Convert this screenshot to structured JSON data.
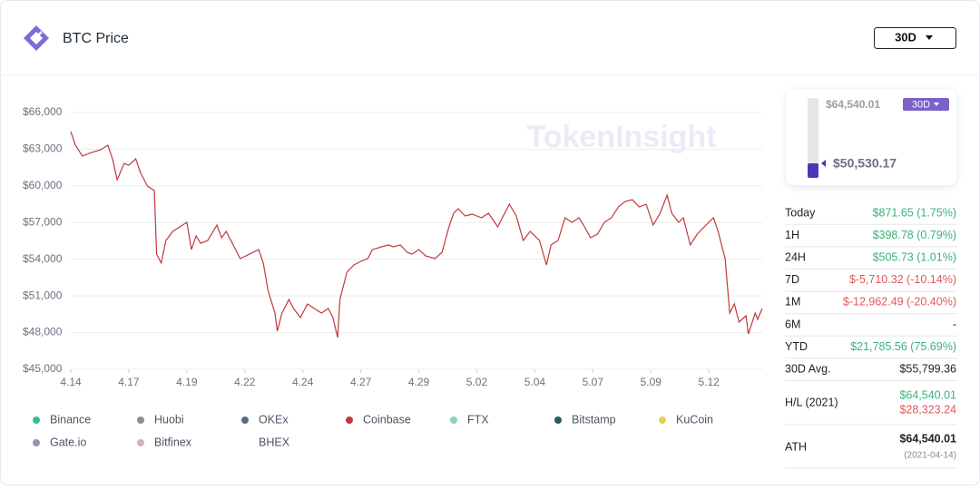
{
  "header": {
    "title": "BTC Price",
    "range": "30D"
  },
  "watermark": "TokenInsight",
  "chart_data": {
    "type": "line",
    "x": [
      0,
      0.2,
      0.5,
      0.9,
      1.3,
      1.6,
      1.8,
      2.0,
      2.3,
      2.5,
      2.8,
      3.0,
      3.3,
      3.6,
      3.7,
      3.9,
      4.1,
      4.4,
      4.7,
      5.0,
      5.2,
      5.4,
      5.6,
      5.9,
      6.3,
      6.5,
      6.7,
      7.0,
      7.3,
      7.7,
      8.1,
      8.3,
      8.5,
      8.8,
      8.9,
      9.1,
      9.4,
      9.6,
      9.9,
      10.2,
      10.5,
      10.8,
      11.1,
      11.3,
      11.5,
      11.6,
      11.9,
      12.2,
      12.5,
      12.8,
      13.0,
      13.4,
      13.7,
      13.9,
      14.2,
      14.5,
      14.7,
      15.0,
      15.3,
      15.7,
      16.0,
      16.3,
      16.5,
      16.7,
      17.0,
      17.3,
      17.7,
      18.0,
      18.4,
      18.6,
      18.9,
      19.2,
      19.5,
      19.8,
      20.2,
      20.5,
      20.7,
      21.0,
      21.3,
      21.6,
      21.9,
      22.1,
      22.4,
      22.7,
      23.0,
      23.3,
      23.6,
      23.9,
      24.2,
      24.5,
      24.8,
      25.1,
      25.4,
      25.7,
      25.9,
      26.2,
      26.4,
      26.7,
      27.0,
      27.3,
      27.7,
      27.9,
      28.2,
      28.4,
      28.6,
      28.8,
      29.1,
      29.2,
      29.5,
      29.6,
      29.8
    ],
    "series": [
      {
        "name": "Binance",
        "color": "#3dbd8d"
      },
      {
        "name": "Huobi",
        "color": "#8f8f8f"
      },
      {
        "name": "OKEx",
        "color": "#5b6b87"
      },
      {
        "name": "Coinbase",
        "color": "#c0393b",
        "values": [
          64440,
          63330,
          62440,
          62730,
          62960,
          63330,
          62210,
          60510,
          61840,
          61690,
          62210,
          61100,
          59990,
          59620,
          54420,
          53680,
          55540,
          56280,
          56650,
          57020,
          54790,
          55910,
          55310,
          55540,
          56800,
          55760,
          56280,
          55170,
          54050,
          54420,
          54790,
          53680,
          51460,
          49600,
          48120,
          49600,
          50710,
          49970,
          49230,
          50340,
          49970,
          49600,
          49970,
          49230,
          47600,
          50710,
          52940,
          53530,
          53830,
          54050,
          54790,
          55020,
          55170,
          55020,
          55170,
          54570,
          54420,
          54790,
          54270,
          54050,
          54570,
          56650,
          57760,
          58130,
          57540,
          57690,
          57390,
          57760,
          56650,
          57390,
          58500,
          57540,
          55540,
          56280,
          55540,
          53530,
          55170,
          55540,
          57390,
          57020,
          57390,
          56800,
          55760,
          56060,
          57020,
          57390,
          58280,
          58730,
          58870,
          58280,
          58500,
          56800,
          57760,
          59250,
          57760,
          57020,
          57390,
          55170,
          56060,
          56650,
          57390,
          56280,
          54050,
          49600,
          50340,
          48860,
          49380,
          47890,
          49600,
          49080,
          49970
        ]
      },
      {
        "name": "FTX",
        "color": "#8dd3b6"
      },
      {
        "name": "Bitstamp",
        "color": "#265c62"
      },
      {
        "name": "KuCoin",
        "color": "#e8d24a"
      },
      {
        "name": "Gate.io",
        "color": "#8b98a9"
      },
      {
        "name": "Bitfinex",
        "color": "#d6b1b1"
      },
      {
        "name": "BHEX",
        "color": "#ffffff"
      }
    ],
    "xlim": [
      0,
      29.8
    ],
    "xticks": [
      {
        "value": 0,
        "label": "4.14"
      },
      {
        "value": 2.5,
        "label": "4.17"
      },
      {
        "value": 5,
        "label": "4.19"
      },
      {
        "value": 7.5,
        "label": "4.22"
      },
      {
        "value": 10,
        "label": "4.24"
      },
      {
        "value": 12.5,
        "label": "4.27"
      },
      {
        "value": 15,
        "label": "4.29"
      },
      {
        "value": 17.5,
        "label": "5.02"
      },
      {
        "value": 20,
        "label": "5.04"
      },
      {
        "value": 22.5,
        "label": "5.07"
      },
      {
        "value": 25,
        "label": "5.09"
      },
      {
        "value": 27.5,
        "label": "5.12"
      }
    ],
    "ylim": [
      45000,
      66000
    ],
    "yticks": [
      {
        "value": 45000,
        "label": "$45,000"
      },
      {
        "value": 48000,
        "label": "$48,000"
      },
      {
        "value": 51000,
        "label": "$51,000"
      },
      {
        "value": 54000,
        "label": "$54,000"
      },
      {
        "value": 57000,
        "label": "$57,000"
      },
      {
        "value": 60000,
        "label": "$60,000"
      },
      {
        "value": 63000,
        "label": "$63,000"
      },
      {
        "value": 66000,
        "label": "$66,000"
      }
    ],
    "grid": true
  },
  "gauge": {
    "high": "$64,540.01",
    "current": "$50,530.17",
    "range": "30D"
  },
  "stats": [
    {
      "label": "Today",
      "value": "$871.65 (1.75%)",
      "color": "#3bb27a"
    },
    {
      "label": "1H",
      "value": "$398.78 (0.79%)",
      "color": "#3bb27a"
    },
    {
      "label": "24H",
      "value": "$505.73 (1.01%)",
      "color": "#3bb27a"
    },
    {
      "label": "7D",
      "value": "$-5,710.32 (-10.14%)",
      "color": "#e0585a"
    },
    {
      "label": "1M",
      "value": "$-12,962.49 (-20.40%)",
      "color": "#e0585a"
    },
    {
      "label": "6M",
      "value": "-",
      "color": "#222222"
    },
    {
      "label": "YTD",
      "value": "$21,785.56 (75.69%)",
      "color": "#3bb27a"
    },
    {
      "label": "30D Avg.",
      "value": "$55,799.36",
      "color": "#222222"
    }
  ],
  "hl": {
    "label": "H/L (2021)",
    "high": "$64,540.01",
    "low": "$28,323.24"
  },
  "ath": {
    "label": "ATH",
    "value": "$64,540.01",
    "date": "(2021-04-14)"
  }
}
